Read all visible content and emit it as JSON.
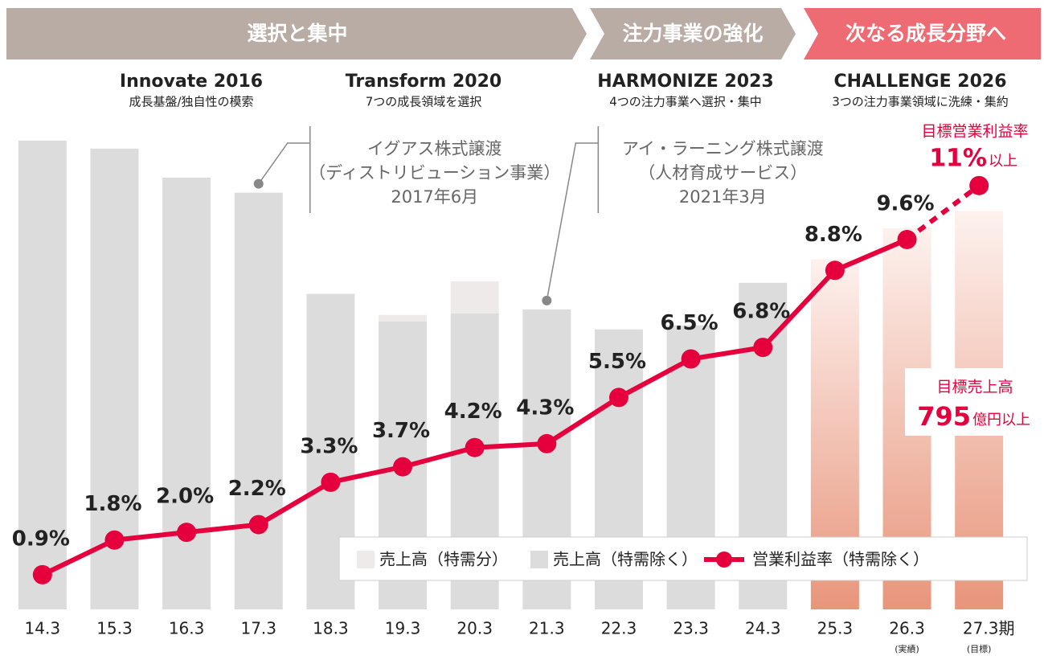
{
  "chart_data": {
    "type": "bar",
    "phases": [
      {
        "label": "選択と集中",
        "color": "#b8aca5"
      },
      {
        "label": "注力事業の強化",
        "color": "#b8aca5"
      },
      {
        "label": "次なる成長分野へ",
        "color": "#ee6b73"
      }
    ],
    "plans": [
      {
        "name": "Innovate 2016",
        "subtitle": "成長基盤/独自性の模索"
      },
      {
        "name": "Transform 2020",
        "subtitle": "7つの成長領域を選択"
      },
      {
        "name": "HARMONIZE 2023",
        "subtitle": "4つの注力事業へ選択・集中"
      },
      {
        "name": "CHALLENGE 2026",
        "subtitle": "3つの注力事業領域に洗練・集約"
      }
    ],
    "annotations": [
      {
        "lines": [
          "イグアス株式譲渡",
          "（ディストリビューション事業）",
          "2017年6月"
        ],
        "category": "17.3"
      },
      {
        "lines": [
          "アイ・ラーニング株式譲渡",
          "（人材育成サービス）",
          "2021年3月"
        ],
        "category": "21.3"
      }
    ],
    "targets": {
      "profit_title": "目標営業利益率",
      "profit_suffix": "以上",
      "sales_title": "目標売上高",
      "sales_suffix": "億円以上"
    },
    "categories": [
      "14.3",
      "15.3",
      "16.3",
      "17.3",
      "18.3",
      "19.3",
      "20.3",
      "21.3",
      "22.3",
      "23.3",
      "24.3",
      "25.3",
      "26.3",
      "27.3期"
    ],
    "category_notes": [
      null,
      null,
      null,
      null,
      null,
      null,
      null,
      null,
      null,
      null,
      null,
      null,
      "(実績)",
      "(目標)"
    ],
    "series": [
      {
        "name": "売上高（特需分）",
        "color": "#efeaea",
        "stack": true,
        "values": [
          null,
          null,
          null,
          null,
          null,
          13,
          64,
          null,
          null,
          null,
          null,
          null,
          null,
          null
        ]
      },
      {
        "name": "売上高（特需除く）",
        "color": "#dcdcdc",
        "values": [
          936,
          920,
          862,
          832,
          630,
          575,
          591,
          599,
          559,
          567,
          652,
          699,
          761,
          795
        ]
      },
      {
        "name": "営業利益率（特需除く）",
        "type": "line",
        "axis": "y2",
        "color": "#e5003d",
        "values": [
          0.9,
          1.8,
          2.0,
          2.2,
          3.3,
          3.7,
          4.2,
          4.3,
          5.5,
          6.5,
          6.8,
          8.8,
          9.6,
          11
        ],
        "value_labels": [
          "0.9%",
          "1.8%",
          "2.0%",
          "2.2%",
          "3.3%",
          "3.7%",
          "4.2%",
          "4.3%",
          "5.5%",
          "6.5%",
          "6.8%",
          "8.8%",
          "9.6%",
          "11%"
        ]
      }
    ],
    "ylim": [
      0,
      1000
    ],
    "y2lim": [
      0,
      13
    ],
    "highlight_categories": [
      "25.3",
      "26.3",
      "27.3期"
    ],
    "highlight_color": "#e8957b",
    "dashed_categories": [
      "27.3期"
    ]
  }
}
